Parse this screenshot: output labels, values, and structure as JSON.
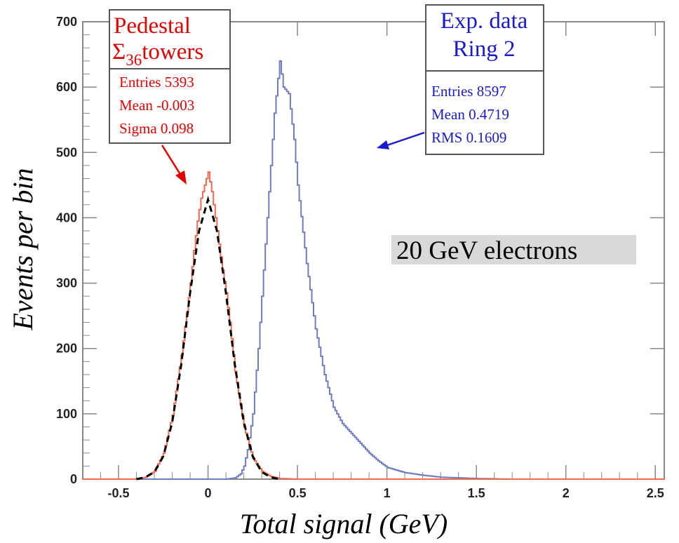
{
  "chart_data": {
    "type": "line",
    "xlabel": "Total signal (GeV)",
    "ylabel": "Events per bin",
    "xlim": [
      -0.7,
      2.55
    ],
    "ylim": [
      0,
      700
    ],
    "x_ticks": [
      "-0.5",
      "0",
      "0.5",
      "1",
      "1.5",
      "2",
      "2.5"
    ],
    "y_ticks": [
      "0",
      "100",
      "200",
      "300",
      "400",
      "500",
      "600",
      "700"
    ],
    "annotation": "20 GeV electrons",
    "colors": {
      "pedestal": "#ee6a50",
      "fit": "#000000",
      "data": "#6f7dc0",
      "red_text": "#e00000",
      "blue_text": "#1a1acc"
    },
    "series": [
      {
        "name": "Pedestal Σ36 towers",
        "style": "histogram",
        "color": "#ee6a50",
        "stats": {
          "title_line1": "Pedestal",
          "title_sigma": "Σ",
          "title_sub": "36",
          "title_rest": "towers",
          "entries": "Entries 5393",
          "mean": "Mean  -0.003",
          "sigma": "Sigma  0.098"
        },
        "x": [
          -0.4,
          -0.35,
          -0.3,
          -0.25,
          -0.2,
          -0.15,
          -0.12,
          -0.1,
          -0.08,
          -0.06,
          -0.04,
          -0.02,
          0.0,
          0.02,
          0.04,
          0.06,
          0.08,
          0.1,
          0.12,
          0.15,
          0.2,
          0.25,
          0.3,
          0.35,
          0.4,
          0.5,
          0.6
        ],
        "y": [
          0,
          3,
          12,
          40,
          98,
          190,
          255,
          300,
          350,
          395,
          430,
          450,
          470,
          440,
          400,
          360,
          320,
          285,
          240,
          165,
          80,
          32,
          12,
          4,
          1,
          0,
          0
        ]
      },
      {
        "name": "Gaussian fit",
        "style": "dashed",
        "color": "#000000",
        "x": [
          -0.4,
          -0.35,
          -0.3,
          -0.25,
          -0.2,
          -0.15,
          -0.1,
          -0.05,
          0.0,
          0.05,
          0.1,
          0.15,
          0.2,
          0.25,
          0.3,
          0.35,
          0.4
        ],
        "y": [
          0,
          3,
          11,
          35,
          87,
          175,
          285,
          380,
          428,
          380,
          285,
          175,
          87,
          35,
          11,
          3,
          0
        ]
      },
      {
        "name": "Exp. data Ring 2",
        "style": "histogram",
        "color": "#6f7dc0",
        "stats": {
          "title_line1": "Exp. data",
          "title_line2": "Ring 2",
          "entries": "Entries  8597",
          "mean": "Mean  0.4719",
          "rms": "RMS  0.1609"
        },
        "x": [
          0.1,
          0.15,
          0.18,
          0.2,
          0.22,
          0.25,
          0.28,
          0.3,
          0.32,
          0.35,
          0.37,
          0.4,
          0.42,
          0.45,
          0.48,
          0.5,
          0.55,
          0.6,
          0.65,
          0.7,
          0.75,
          0.8,
          0.85,
          0.9,
          0.95,
          1.0,
          1.1,
          1.2,
          1.3,
          1.4,
          1.5,
          1.7,
          2.0,
          2.5
        ],
        "y": [
          0,
          2,
          8,
          20,
          45,
          100,
          200,
          280,
          360,
          480,
          560,
          640,
          600,
          590,
          520,
          450,
          330,
          230,
          160,
          110,
          85,
          70,
          55,
          40,
          28,
          18,
          10,
          6,
          3,
          2,
          1,
          0,
          0,
          0
        ]
      }
    ]
  }
}
